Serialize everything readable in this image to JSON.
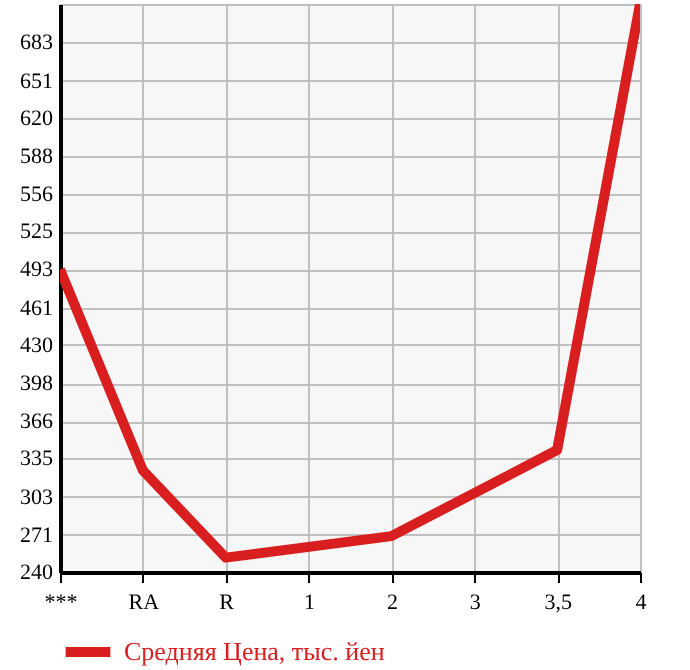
{
  "chart_data": {
    "type": "line",
    "categories": [
      "***",
      "RA",
      "R",
      "1",
      "2",
      "3",
      "3,5",
      "4"
    ],
    "series": [
      {
        "name": "Средняя Цена, тыс. йен",
        "color": "#d81e1e",
        "values": [
          493,
          325,
          252,
          null,
          270,
          null,
          342,
          715
        ]
      }
    ],
    "ylim": [
      240,
      715
    ],
    "yticks": [
      240,
      271,
      303,
      335,
      366,
      398,
      430,
      461,
      493,
      525,
      556,
      588,
      620,
      651,
      683
    ],
    "grid": true,
    "legend": "bottom",
    "marker": "none",
    "line_style": "solid"
  }
}
